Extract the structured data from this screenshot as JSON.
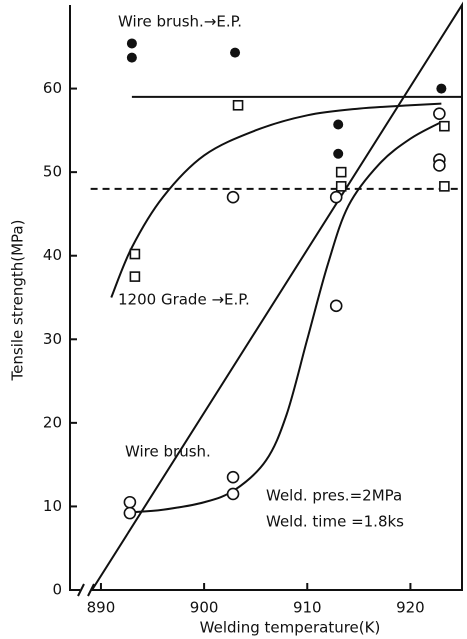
{
  "chart_data": {
    "type": "scatter",
    "xlabel": "Welding temperature(K)",
    "ylabel": "Tensile strength(MPa)",
    "xlim": [
      887,
      925
    ],
    "ylim": [
      0,
      70
    ],
    "xticks": [
      890,
      900,
      910,
      920
    ],
    "yticks": [
      0,
      10,
      20,
      30,
      40,
      50,
      60
    ],
    "color": "#111111",
    "series": [
      {
        "name": "Wire brush.→E.P.",
        "marker": "filled-circle",
        "x": [
          893,
          893,
          903,
          913,
          913,
          923
        ],
        "y": [
          65.4,
          63.7,
          64.3,
          55.7,
          52.2,
          60
        ]
      },
      {
        "name": "1200 Grade →E.P.",
        "marker": "square",
        "x": [
          893,
          893,
          903,
          913,
          913,
          923,
          923
        ],
        "y": [
          40.2,
          37.5,
          58,
          50,
          48.3,
          55.5,
          48.3
        ]
      },
      {
        "name": "Wire brush.",
        "marker": "circle",
        "x": [
          893,
          893,
          903,
          903,
          903,
          913,
          913,
          923,
          923,
          923
        ],
        "y": [
          10.5,
          9.2,
          13.5,
          11.5,
          47,
          47,
          34,
          57,
          51.5,
          50.8
        ]
      }
    ],
    "curves": [
      {
        "style": "solid",
        "x": [
          891,
          893,
          896,
          900,
          905,
          910,
          915,
          920,
          923
        ],
        "y": [
          35,
          41,
          47,
          52,
          55,
          56.8,
          57.6,
          58,
          58.2
        ]
      },
      {
        "style": "solid",
        "x": [
          893,
          896,
          900,
          903,
          906,
          908,
          910,
          912,
          914,
          917,
          920,
          923
        ],
        "y": [
          9.3,
          9.6,
          10.5,
          12,
          15.5,
          21,
          30,
          39,
          46,
          51,
          54,
          56
        ]
      },
      {
        "style": "solid",
        "x": [
          893,
          925
        ],
        "y": [
          59,
          59
        ]
      },
      {
        "style": "dashed",
        "x": [
          889,
          925
        ],
        "y": [
          48,
          48
        ]
      }
    ],
    "annotations": [
      "Weld. pres.=2MPa",
      "Weld. time =1.8ks"
    ]
  }
}
